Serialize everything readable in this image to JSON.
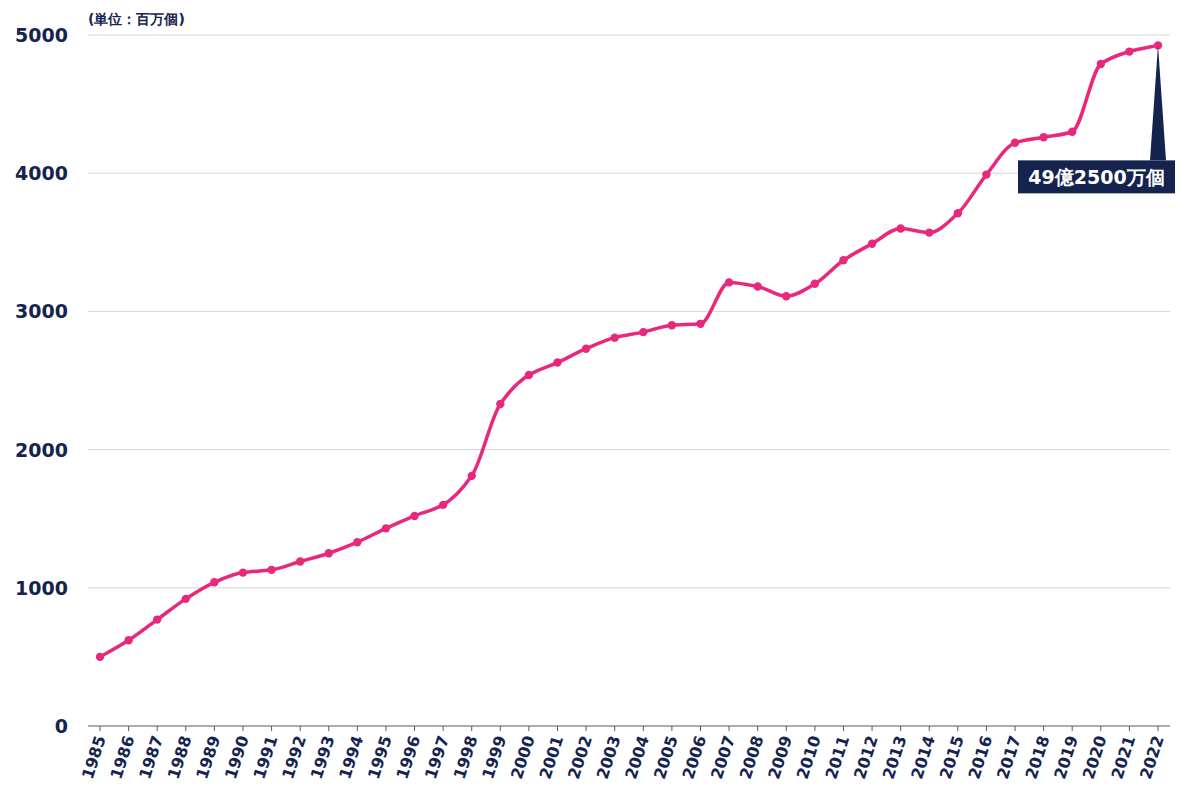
{
  "chart_data": {
    "type": "line",
    "y_label": "(単位：百万個)",
    "categories": [
      "1985",
      "1986",
      "1987",
      "1988",
      "1989",
      "1990",
      "1991",
      "1992",
      "1993",
      "1994",
      "1995",
      "1996",
      "1997",
      "1998",
      "1999",
      "2000",
      "2001",
      "2002",
      "2003",
      "2004",
      "2005",
      "2006",
      "2007",
      "2008",
      "2009",
      "2010",
      "2011",
      "2012",
      "2013",
      "2014",
      "2015",
      "2016",
      "2017",
      "2018",
      "2019",
      "2020",
      "2021",
      "2022"
    ],
    "values": [
      500,
      620,
      770,
      920,
      1040,
      1110,
      1130,
      1190,
      1250,
      1330,
      1430,
      1520,
      1600,
      1810,
      2330,
      2540,
      2630,
      2730,
      2810,
      2850,
      2900,
      2910,
      3210,
      3180,
      3110,
      3200,
      3370,
      3490,
      3600,
      3570,
      3710,
      3990,
      4220,
      4260,
      4300,
      4790,
      4880,
      4925
    ],
    "color": "#e8287c",
    "marker": "circle",
    "ylim": [
      0,
      5000
    ],
    "yticks": [
      0,
      1000,
      2000,
      3000,
      4000,
      5000
    ],
    "grid": true,
    "annotations": [
      {
        "text": "49億2500万個",
        "category": "2022"
      }
    ]
  }
}
